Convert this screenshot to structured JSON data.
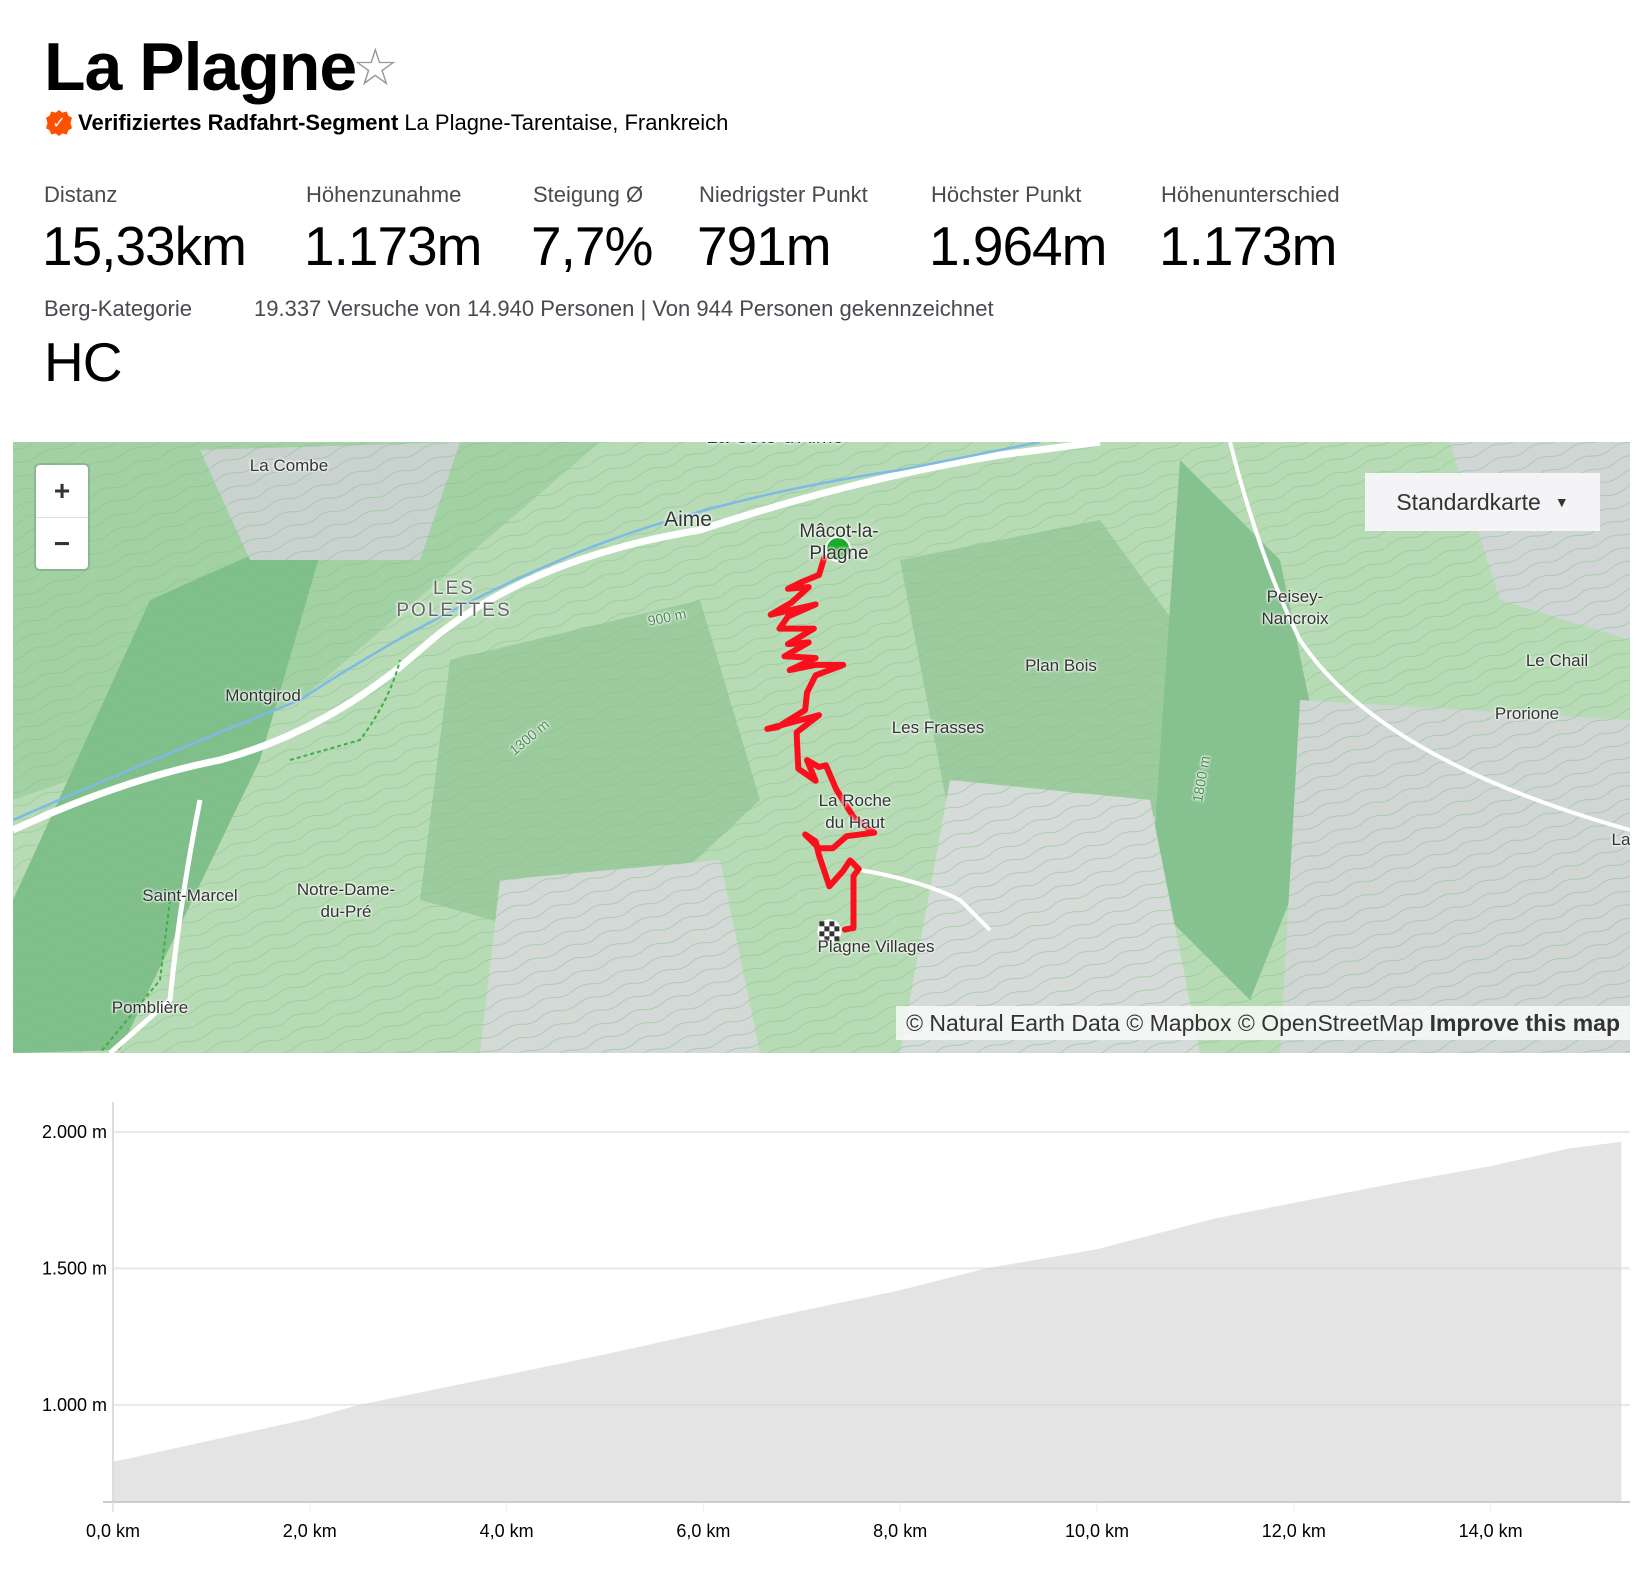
{
  "header": {
    "title": "La Plagne",
    "favorite_icon": "star-outline-icon",
    "verified_icon": "verified-badge-icon",
    "verified_label": "Verifiziertes Radfahrt-Segment",
    "location": "La Plagne-Tarentaise, Frankreich",
    "accent_color": "#fc5200"
  },
  "stats": [
    {
      "label": "Distanz",
      "value": "15,33km"
    },
    {
      "label": "Höhenzunahme",
      "value": "1.173m"
    },
    {
      "label": "Steigung Ø",
      "value": "7,7%"
    },
    {
      "label": "Niedrigster Punkt",
      "value": "791m"
    },
    {
      "label": "Höchster Punkt",
      "value": "1.964m"
    },
    {
      "label": "Höhenunterschied",
      "value": "1.173m"
    }
  ],
  "category": {
    "label": "Berg-Kategorie",
    "value": "HC"
  },
  "attempts_text": "19.337 Versuche von 14.940 Personen | Von 944 Personen gekennzeichnet",
  "map": {
    "zoom_in": "+",
    "zoom_out": "−",
    "map_type": "Standardkarte",
    "attribution": "© Natural Earth Data © Mapbox © OpenStreetMap",
    "improve_link": "Improve this map",
    "route_color": "#fc0f1c",
    "start_color": "#1aab2a",
    "labels": {
      "cote_daime": "La Côte-d'Aime",
      "la_combe": "La Combe",
      "aime": "Aime",
      "macot": "Mâcot-la-\nPlagne",
      "les_polettes": "LES\nPOLETTES",
      "contour_900": "900 m",
      "peisey": "Peisey-\nNancroix",
      "plan_bois": "Plan Bois",
      "le_chail": "Le Chail",
      "montgirod": "Montgirod",
      "les_frasses": "Les Frasses",
      "prorione": "Prorione",
      "contour_1300": "1300 m",
      "contour_1800": "1800 m",
      "roche_du_haut": "La Roche\ndu Haut",
      "la": "La",
      "saint_marcel": "Saint-Marcel",
      "notre_dame": "Notre-Dame-\ndu-Pré",
      "plagne_villages": "Plagne Villages",
      "pombliere": "Pomblière"
    }
  },
  "chart_data": {
    "type": "area",
    "xlabel": "",
    "ylabel": "",
    "x_unit": "km",
    "y_unit": "m",
    "xlim": [
      0,
      15.33
    ],
    "ylim": [
      644,
      2100
    ],
    "x_ticks": [
      "0,0 km",
      "2,0 km",
      "4,0 km",
      "6,0 km",
      "8,0 km",
      "10,0 km",
      "12,0 km",
      "14,0 km"
    ],
    "x_tick_values": [
      0,
      2,
      4,
      6,
      8,
      10,
      12,
      14
    ],
    "y_ticks": [
      "1.000 m",
      "1.500 m",
      "2.000 m"
    ],
    "y_tick_values": [
      1000,
      1500,
      2000
    ],
    "grid": true,
    "fill_color": "#e4e4e4",
    "x": [
      0,
      1,
      2,
      2.5,
      4,
      5,
      6,
      7,
      8,
      8.87,
      10,
      11.2,
      12,
      13,
      14,
      14.8,
      15.33
    ],
    "y": [
      791,
      870,
      950,
      1000,
      1110,
      1185,
      1265,
      1345,
      1420,
      1500,
      1570,
      1683,
      1740,
      1810,
      1875,
      1940,
      1964
    ]
  }
}
